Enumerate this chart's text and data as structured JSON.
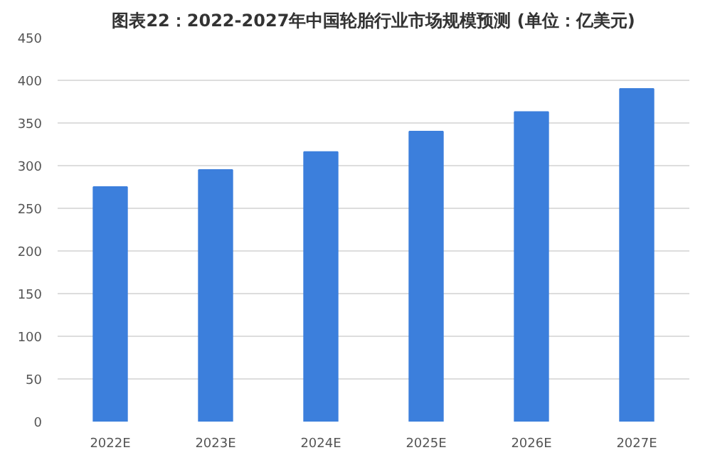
{
  "chart_data": {
    "type": "bar",
    "title": "图表22：2022-2027年中国轮胎行业市场规模预测 (单位：亿美元)",
    "categories": [
      "2022E",
      "2023E",
      "2024E",
      "2025E",
      "2026E",
      "2027E"
    ],
    "values": [
      275,
      295,
      316,
      340,
      363,
      390
    ],
    "color": "#3c7fdc",
    "ylim": [
      0,
      450
    ],
    "yticks": [
      0,
      50,
      100,
      150,
      200,
      250,
      300,
      350,
      400,
      450
    ],
    "grid": "y"
  }
}
